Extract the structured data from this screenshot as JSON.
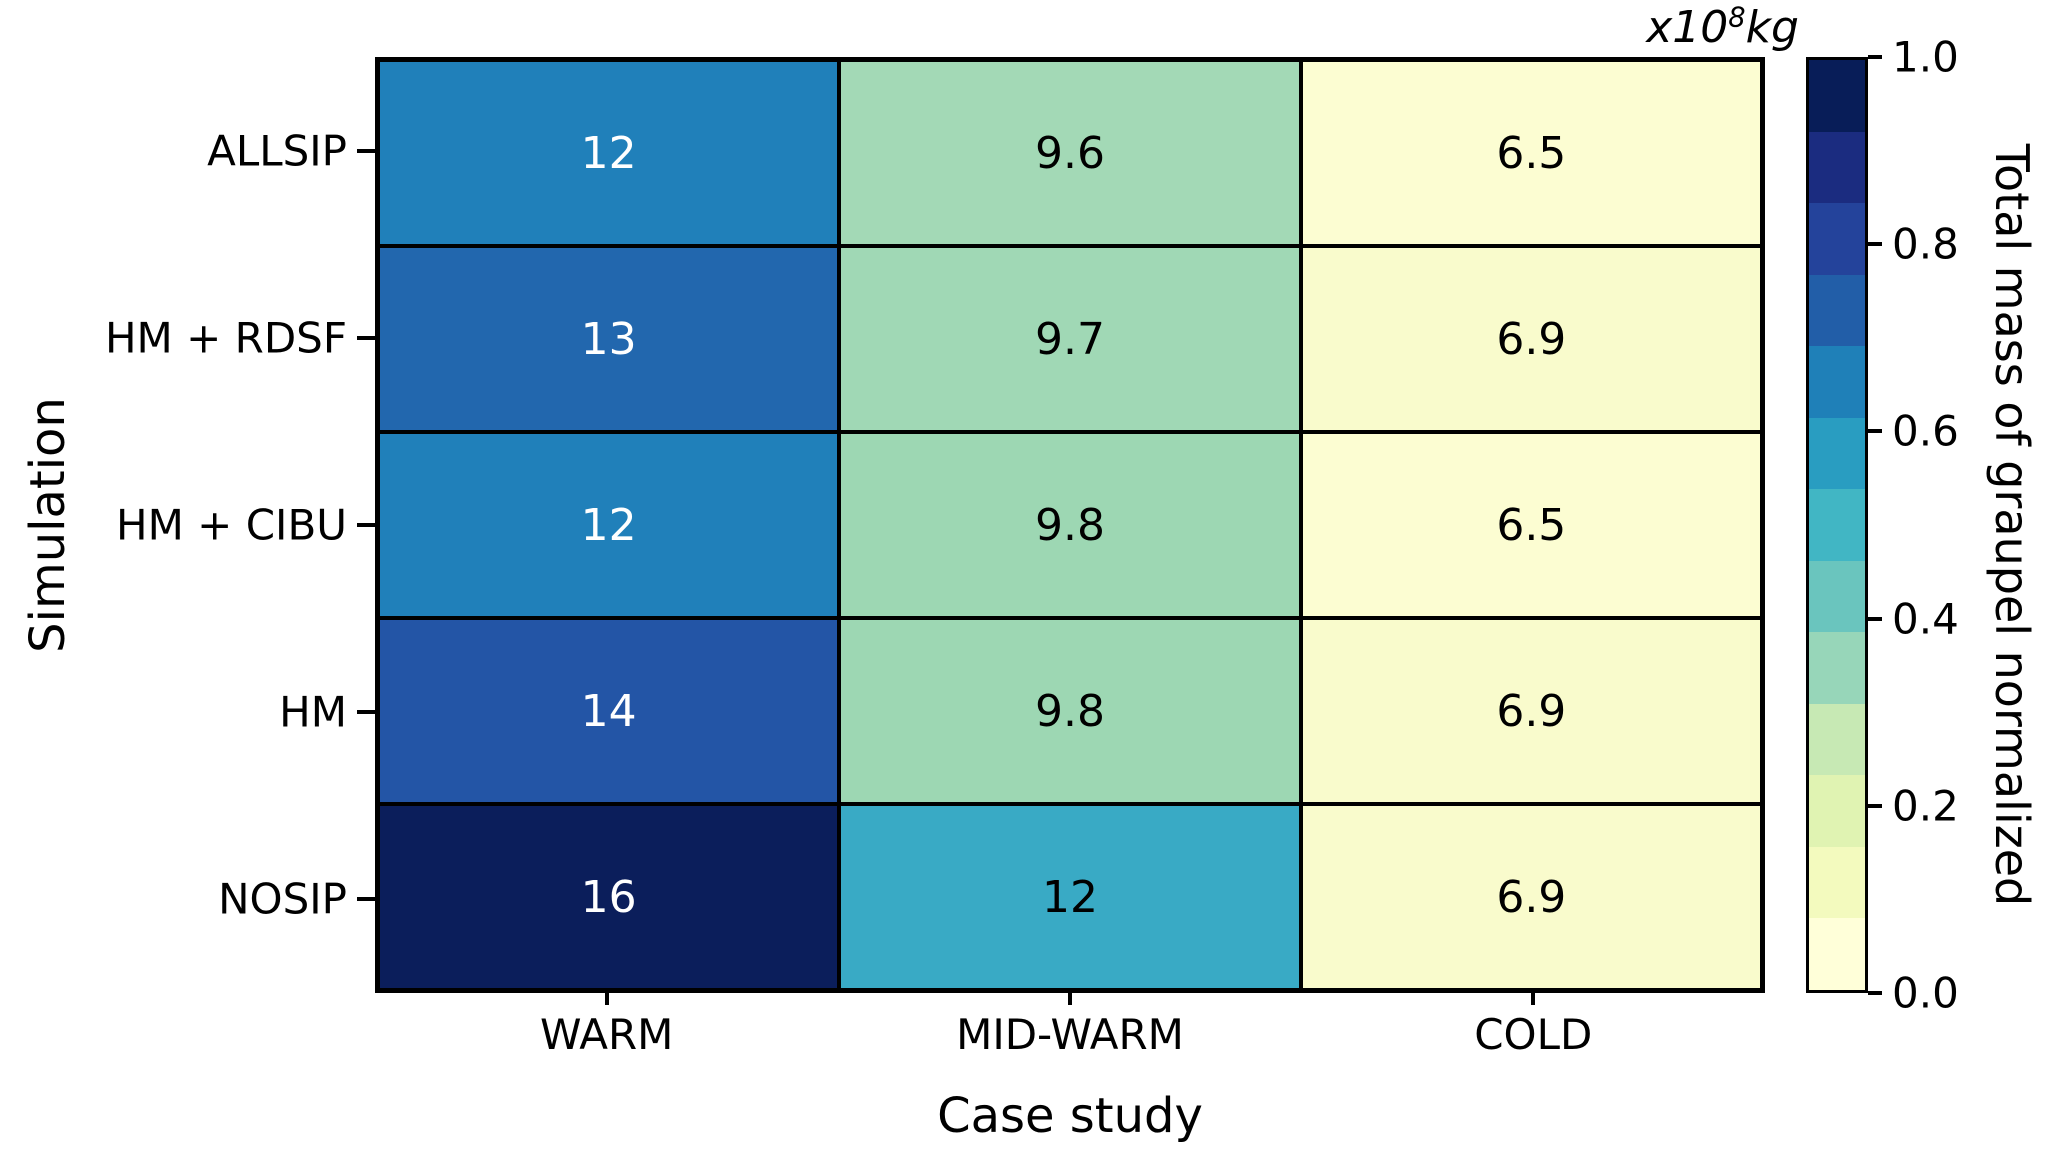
{
  "figure": {
    "background": "#ffffff"
  },
  "annotation": {
    "prefix": "x10",
    "exponent": "8",
    "suffix": "kg"
  },
  "chart_data": {
    "type": "heatmap",
    "title": "",
    "xlabel": "Case study",
    "ylabel": "Simulation",
    "x_categories": [
      "WARM",
      "MID-WARM",
      "COLD"
    ],
    "y_categories": [
      "ALLSIP",
      "HM + RDSF",
      "HM + CIBU",
      "HM",
      "NOSIP"
    ],
    "values": [
      [
        12,
        9.6,
        6.5
      ],
      [
        13,
        9.7,
        6.9
      ],
      [
        12,
        9.8,
        6.5
      ],
      [
        14,
        9.8,
        6.9
      ],
      [
        16,
        12,
        6.9
      ]
    ],
    "value_labels": [
      [
        "12",
        "9.6",
        "6.5"
      ],
      [
        "13",
        "9.7",
        "6.9"
      ],
      [
        "12",
        "9.8",
        "6.5"
      ],
      [
        "14",
        "9.8",
        "6.9"
      ],
      [
        "16",
        "12",
        "6.9"
      ]
    ],
    "units_annotation": "x10^8 kg",
    "grid_color": "#000000",
    "cell_colors": [
      [
        "#2080ba",
        "#a3d9b6",
        "#fcfdd2"
      ],
      [
        "#2267ae",
        "#a0d8b5",
        "#f9fbcc"
      ],
      [
        "#2080ba",
        "#9dd7b3",
        "#fcfdd2"
      ],
      [
        "#2355a6",
        "#9dd7b3",
        "#f9fbcc"
      ],
      [
        "#0b1e5b",
        "#39aac5",
        "#f9fbcc"
      ]
    ],
    "text_colors": [
      [
        "#ffffff",
        "#000000",
        "#000000"
      ],
      [
        "#ffffff",
        "#000000",
        "#000000"
      ],
      [
        "#ffffff",
        "#000000",
        "#000000"
      ],
      [
        "#ffffff",
        "#000000",
        "#000000"
      ],
      [
        "#ffffff",
        "#000000",
        "#000000"
      ]
    ],
    "colorbar": {
      "label": "Total mass of graupel normalized",
      "range": [
        0.0,
        1.0
      ],
      "tick_labels": [
        "1.0",
        "0.8",
        "0.6",
        "0.4",
        "0.2",
        "0.0"
      ],
      "colors_top_to_bottom": [
        "#081d58",
        "#1b2c80",
        "#24439b",
        "#225ea8",
        "#1f80b8",
        "#299dc1",
        "#41b6c4",
        "#6ac5be",
        "#97d6b9",
        "#c7e9b4",
        "#e0f3b2",
        "#f3fabe",
        "#ffffd9"
      ]
    }
  }
}
